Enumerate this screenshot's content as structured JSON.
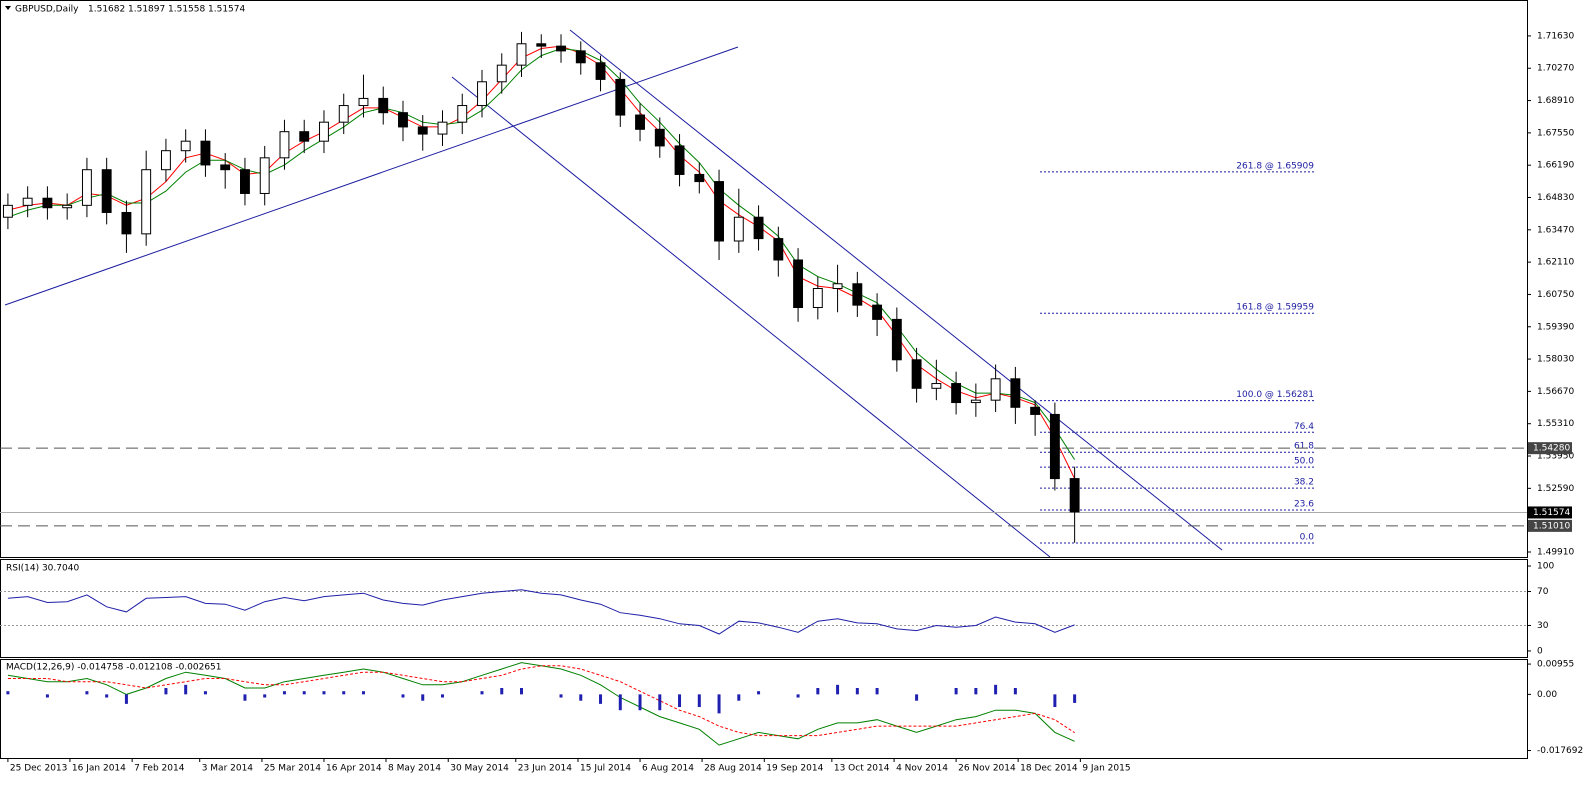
{
  "chart_data": [
    {
      "type": "candlestick",
      "title": "GBPUSD,Daily",
      "header_values": [
        1.51682,
        1.51897,
        1.51558,
        1.51574
      ],
      "open": [
        1.64,
        1.645,
        1.648,
        1.644,
        1.645,
        1.66,
        1.642,
        1.633,
        1.66,
        1.668,
        1.672,
        1.662,
        1.66,
        1.65,
        1.665,
        1.676,
        1.672,
        1.68,
        1.687,
        1.69,
        1.684,
        1.678,
        1.675,
        1.68,
        1.687,
        1.697,
        1.704,
        1.713,
        1.712,
        1.71,
        1.705,
        1.698,
        1.683,
        1.677,
        1.67,
        1.658,
        1.655,
        1.63,
        1.64,
        1.631,
        1.622,
        1.602,
        1.61,
        1.612,
        1.603,
        1.597,
        1.58,
        1.568,
        1.57,
        1.562,
        1.563,
        1.572,
        1.56,
        1.557,
        1.53
      ],
      "high": [
        1.65,
        1.653,
        1.653,
        1.65,
        1.665,
        1.665,
        1.647,
        1.668,
        1.673,
        1.677,
        1.677,
        1.667,
        1.665,
        1.67,
        1.681,
        1.681,
        1.685,
        1.692,
        1.7,
        1.695,
        1.689,
        1.683,
        1.685,
        1.692,
        1.702,
        1.709,
        1.718,
        1.717,
        1.717,
        1.714,
        1.708,
        1.701,
        1.688,
        1.682,
        1.675,
        1.663,
        1.66,
        1.652,
        1.645,
        1.636,
        1.627,
        1.615,
        1.62,
        1.617,
        1.608,
        1.602,
        1.585,
        1.58,
        1.575,
        1.57,
        1.578,
        1.577,
        1.563,
        1.562,
        1.535
      ],
      "low": [
        1.635,
        1.64,
        1.639,
        1.639,
        1.64,
        1.637,
        1.625,
        1.628,
        1.655,
        1.663,
        1.657,
        1.652,
        1.645,
        1.645,
        1.66,
        1.667,
        1.667,
        1.675,
        1.682,
        1.679,
        1.672,
        1.668,
        1.67,
        1.675,
        1.682,
        1.692,
        1.699,
        1.707,
        1.705,
        1.7,
        1.693,
        1.678,
        1.672,
        1.665,
        1.653,
        1.65,
        1.622,
        1.625,
        1.626,
        1.615,
        1.596,
        1.597,
        1.6,
        1.598,
        1.59,
        1.575,
        1.562,
        1.563,
        1.557,
        1.556,
        1.558,
        1.553,
        1.548,
        1.525,
        1.503
      ],
      "close": [
        1.645,
        1.648,
        1.644,
        1.645,
        1.66,
        1.642,
        1.633,
        1.66,
        1.668,
        1.672,
        1.662,
        1.66,
        1.65,
        1.665,
        1.676,
        1.672,
        1.68,
        1.687,
        1.69,
        1.684,
        1.678,
        1.675,
        1.68,
        1.687,
        1.697,
        1.704,
        1.713,
        1.712,
        1.71,
        1.705,
        1.698,
        1.683,
        1.677,
        1.67,
        1.658,
        1.655,
        1.63,
        1.64,
        1.631,
        1.622,
        1.602,
        1.61,
        1.612,
        1.603,
        1.597,
        1.58,
        1.568,
        1.57,
        1.562,
        1.563,
        1.572,
        1.56,
        1.557,
        1.53,
        1.516
      ],
      "moving_averages": [
        {
          "color": "#ff0000",
          "values": [
            1.643,
            1.645,
            1.646,
            1.645,
            1.65,
            1.649,
            1.645,
            1.648,
            1.655,
            1.665,
            1.667,
            1.664,
            1.658,
            1.659,
            1.667,
            1.672,
            1.676,
            1.681,
            1.686,
            1.686,
            1.682,
            1.678,
            1.678,
            1.682,
            1.689,
            1.698,
            1.707,
            1.711,
            1.712,
            1.709,
            1.704,
            1.694,
            1.684,
            1.676,
            1.666,
            1.659,
            1.647,
            1.641,
            1.636,
            1.63,
            1.615,
            1.611,
            1.61,
            1.606,
            1.601,
            1.59,
            1.578,
            1.572,
            1.567,
            1.564,
            1.566,
            1.564,
            1.561,
            1.547,
            1.53
          ]
        },
        {
          "color": "#008000",
          "values": [
            1.64,
            1.643,
            1.645,
            1.645,
            1.648,
            1.65,
            1.646,
            1.646,
            1.651,
            1.659,
            1.664,
            1.664,
            1.66,
            1.658,
            1.662,
            1.668,
            1.673,
            1.678,
            1.684,
            1.686,
            1.684,
            1.68,
            1.679,
            1.68,
            1.685,
            1.693,
            1.702,
            1.708,
            1.711,
            1.71,
            1.706,
            1.698,
            1.688,
            1.68,
            1.671,
            1.663,
            1.652,
            1.645,
            1.639,
            1.632,
            1.62,
            1.615,
            1.612,
            1.608,
            1.604,
            1.594,
            1.583,
            1.576,
            1.57,
            1.566,
            1.566,
            1.565,
            1.562,
            1.551,
            1.538
          ]
        }
      ],
      "xlim": [
        -0.4,
        76.9
      ],
      "ylim": [
        1.497,
        1.731
      ],
      "yticks": [
        {
          "value": 1.7163,
          "label": "1.71630"
        },
        {
          "value": 1.7027,
          "label": "1.70270"
        },
        {
          "value": 1.6891,
          "label": "1.68910"
        },
        {
          "value": 1.6755,
          "label": "1.67550"
        },
        {
          "value": 1.6619,
          "label": "1.66190"
        },
        {
          "value": 1.6483,
          "label": "1.64830"
        },
        {
          "value": 1.6347,
          "label": "1.63470"
        },
        {
          "value": 1.6211,
          "label": "1.62110"
        },
        {
          "value": 1.6075,
          "label": "1.60750"
        },
        {
          "value": 1.5939,
          "label": "1.59390"
        },
        {
          "value": 1.5803,
          "label": "1.58030"
        },
        {
          "value": 1.5667,
          "label": "1.56670"
        },
        {
          "value": 1.5531,
          "label": "1.55310"
        },
        {
          "value": 1.5395,
          "label": "1.53950"
        },
        {
          "value": 1.5259,
          "label": "1.52590"
        },
        {
          "value": 1.4991,
          "label": "1.49910"
        }
      ],
      "xticks": [
        {
          "value": 0,
          "label": "25 Dec 2013"
        },
        {
          "value": 3.14,
          "label": "16 Jan 2014"
        },
        {
          "value": 6.29,
          "label": "7 Feb 2014"
        },
        {
          "value": 9.71,
          "label": "3 Mar 2014"
        },
        {
          "value": 12.86,
          "label": "25 Mar 2014"
        },
        {
          "value": 16,
          "label": "16 Apr 2014"
        },
        {
          "value": 19.14,
          "label": "8 May 2014"
        },
        {
          "value": 22.29,
          "label": "30 May 2014"
        },
        {
          "value": 25.71,
          "label": "23 Jun 2014"
        },
        {
          "value": 28.86,
          "label": "15 Jul 2014"
        },
        {
          "value": 32,
          "label": "6 Aug 2014"
        },
        {
          "value": 35.14,
          "label": "28 Aug 2014"
        },
        {
          "value": 38.29,
          "label": "19 Sep 2014"
        },
        {
          "value": 41.71,
          "label": "13 Oct 2014"
        },
        {
          "value": 44.86,
          "label": "4 Nov 2014"
        },
        {
          "value": 48,
          "label": "26 Nov 2014"
        },
        {
          "value": 51.14,
          "label": "18 Dec 2014"
        },
        {
          "value": 54.29,
          "label": "9 Jan 2015"
        }
      ],
      "levels": [
        {
          "value": 1.5428,
          "label": "1.54280",
          "style": "dashed",
          "color": "#444444"
        },
        {
          "value": 1.51574,
          "style": "solid",
          "color": "#000000"
        },
        {
          "value": 1.5101,
          "label": "1.51010",
          "style": "dashed",
          "color": "#444444"
        }
      ],
      "fibonacci": [
        {
          "label": "261.8 @ 1.65909",
          "value": 1.65909
        },
        {
          "label": "161.8 @ 1.59959",
          "value": 1.59959
        },
        {
          "label": "100.0 @ 1.56281",
          "value": 1.56281
        },
        {
          "label": "76.4",
          "value": 1.5495
        },
        {
          "label": "61.8",
          "value": 1.5411
        },
        {
          "label": "50.0",
          "value": 1.5348
        },
        {
          "label": "38.2",
          "value": 1.526
        },
        {
          "label": "23.6",
          "value": 1.5168
        },
        {
          "label": "0.0",
          "value": 1.5029
        }
      ]
    },
    {
      "type": "line",
      "title": "RSI(14) 30.7040",
      "series": [
        {
          "color": "#1f1fa8",
          "values": [
            62,
            64,
            57,
            58,
            66,
            52,
            46,
            62,
            63,
            64,
            56,
            55,
            48,
            58,
            63,
            59,
            64,
            66,
            68,
            60,
            56,
            54,
            60,
            64,
            68,
            70,
            72,
            68,
            66,
            60,
            55,
            45,
            42,
            38,
            32,
            30,
            20,
            35,
            33,
            28,
            22,
            35,
            38,
            33,
            32,
            26,
            24,
            30,
            28,
            30,
            40,
            34,
            32,
            22,
            30.7
          ]
        }
      ],
      "ylim": [
        -8.3,
        107.1
      ],
      "yticks": [
        100,
        70,
        30,
        0
      ],
      "levels": [
        70,
        30
      ]
    },
    {
      "type": "macd",
      "title": "MACD(12,26,9) -0.014758 -0.012108 -0.002651",
      "series": [
        {
          "color": "#008000",
          "style": "solid",
          "values": [
            0.006,
            0.005,
            0.004,
            0.004,
            0.005,
            0.003,
            0.0,
            0.002,
            0.005,
            0.007,
            0.006,
            0.005,
            0.002,
            0.002,
            0.004,
            0.005,
            0.006,
            0.007,
            0.008,
            0.007,
            0.005,
            0.003,
            0.003,
            0.004,
            0.006,
            0.008,
            0.01,
            0.009,
            0.008,
            0.006,
            0.003,
            -0.001,
            -0.004,
            -0.007,
            -0.009,
            -0.011,
            -0.016,
            -0.014,
            -0.012,
            -0.013,
            -0.014,
            -0.011,
            -0.009,
            -0.009,
            -0.008,
            -0.01,
            -0.012,
            -0.01,
            -0.008,
            -0.007,
            -0.005,
            -0.005,
            -0.006,
            -0.012,
            -0.0148
          ]
        },
        {
          "color": "#ff0000",
          "style": "dashed",
          "values": [
            0.005,
            0.005,
            0.005,
            0.004,
            0.004,
            0.004,
            0.003,
            0.002,
            0.003,
            0.004,
            0.005,
            0.005,
            0.004,
            0.003,
            0.003,
            0.004,
            0.005,
            0.006,
            0.007,
            0.007,
            0.006,
            0.005,
            0.004,
            0.004,
            0.005,
            0.006,
            0.008,
            0.009,
            0.009,
            0.008,
            0.006,
            0.004,
            0.001,
            -0.002,
            -0.005,
            -0.007,
            -0.01,
            -0.012,
            -0.013,
            -0.013,
            -0.013,
            -0.013,
            -0.012,
            -0.011,
            -0.01,
            -0.01,
            -0.01,
            -0.01,
            -0.01,
            -0.009,
            -0.008,
            -0.007,
            -0.006,
            -0.008,
            -0.0121
          ]
        },
        {
          "color": "#2020b0",
          "style": "histogram",
          "values": [
            0.001,
            0,
            -0.001,
            0,
            0.001,
            -0.001,
            -0.003,
            0,
            0.002,
            0.003,
            0.001,
            0,
            -0.002,
            -0.001,
            0.001,
            0.001,
            0.001,
            0.001,
            0.001,
            0,
            -0.001,
            -0.002,
            -0.001,
            0,
            0.001,
            0.002,
            0.002,
            0,
            -0.001,
            -0.002,
            -0.003,
            -0.005,
            -0.005,
            -0.005,
            -0.004,
            -0.004,
            -0.006,
            -0.002,
            0.001,
            0,
            -0.001,
            0.002,
            0.003,
            0.002,
            0.002,
            0,
            -0.002,
            0,
            0.002,
            0.002,
            0.003,
            0.002,
            0,
            -0.004,
            -0.0027
          ]
        }
      ],
      "ylim": [
        -0.02006,
        0.01083
      ],
      "yticks": [
        0.00955,
        {
          "value": 0,
          "label": "0.00"
        },
        -0.017692
      ]
    }
  ]
}
